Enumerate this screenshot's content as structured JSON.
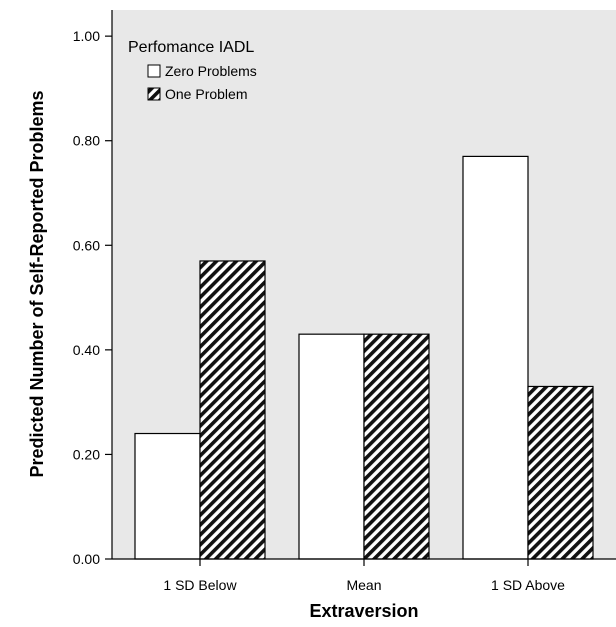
{
  "chart_data": {
    "type": "bar",
    "title": "",
    "xlabel": "Extraversion",
    "ylabel": "Predicted Number of Self-Reported Problems",
    "categories": [
      "1 SD Below",
      "Mean",
      "1 SD Above"
    ],
    "ylim": [
      0,
      1.05
    ],
    "yticks": [
      "0.00",
      "0.20",
      "0.40",
      "0.60",
      "0.80",
      "1.00"
    ],
    "legend": {
      "title": "Perfomance IADL",
      "position": "top-left"
    },
    "grid": false,
    "background_color": "#e8e8e8",
    "series": [
      {
        "name": "Zero Problems",
        "fill": "white",
        "values": [
          0.24,
          0.43,
          0.77
        ]
      },
      {
        "name": "One Problem",
        "fill": "diagonal-hatch",
        "values": [
          0.57,
          0.43,
          0.33
        ]
      }
    ]
  }
}
